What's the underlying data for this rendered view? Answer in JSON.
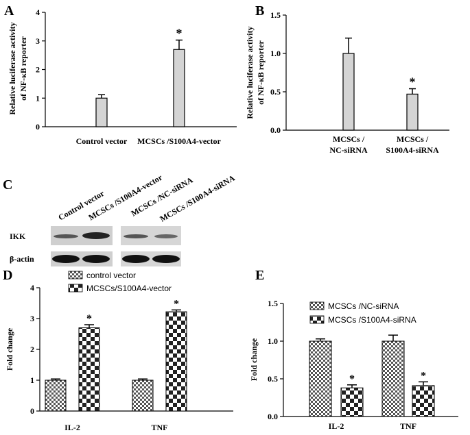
{
  "chart_data": [
    {
      "type": "bar",
      "label": "A",
      "y_label": "Relative luciferase activity\nof NF-κB reporter",
      "categories": [
        "Control vector",
        "MCSCs /S100A4-vector"
      ],
      "values": [
        1.0,
        2.7
      ],
      "errors": [
        0.12,
        0.33
      ],
      "color": "#d4d4d4",
      "ylim": [
        0,
        4
      ],
      "yticks": [
        0,
        1,
        2,
        3,
        4
      ],
      "annotations": [
        {
          "category": "MCSCs /S100A4-vector",
          "text": "*"
        }
      ]
    },
    {
      "type": "bar",
      "label": "B",
      "y_label": "Relative luciferase activity\nof NF-κB reporter",
      "categories": [
        "MCSCs /\nNC-siRNA",
        "MCSCs /\nS100A4-siRNA"
      ],
      "values": [
        1.0,
        0.47
      ],
      "errors": [
        0.2,
        0.07
      ],
      "color": "#d4d4d4",
      "ylim": [
        0,
        1.5
      ],
      "yticks": [
        {
          "value": 0,
          "label": "0.0"
        },
        0.5,
        {
          "value": 1,
          "label": "1.0"
        },
        1.5
      ],
      "annotations": [
        {
          "category": "MCSCs /\nS100A4-siRNA",
          "text": "*"
        }
      ]
    },
    {
      "type": "bar",
      "label": "D",
      "y_label": "Fold change",
      "categories": [
        "IL-2",
        "TNF"
      ],
      "series": [
        {
          "name": "control vector",
          "color": "#555555",
          "values": [
            1.0,
            1.0
          ],
          "errors": [
            0.04,
            0.04
          ]
        },
        {
          "name": "MCSCs/S100A4-vector",
          "color": "#222222",
          "values": [
            2.7,
            3.22
          ],
          "errors": [
            0.1,
            0.06
          ],
          "annotations": [
            "*",
            "*"
          ]
        }
      ],
      "ylim": [
        0,
        4
      ],
      "yticks": [
        0,
        1,
        2,
        3,
        4
      ]
    },
    {
      "type": "bar",
      "label": "E",
      "y_label": "Fold change",
      "categories": [
        "IL-2",
        "TNF"
      ],
      "series": [
        {
          "name": "MCSCs /NC-siRNA",
          "color": "#555555",
          "values": [
            1.0,
            1.0
          ],
          "errors": [
            0.03,
            0.08
          ]
        },
        {
          "name": "MCSCs /S100A4-siRNA",
          "color": "#222222",
          "values": [
            0.38,
            0.41
          ],
          "errors": [
            0.04,
            0.05
          ],
          "annotations": [
            "*",
            "*"
          ]
        }
      ],
      "ylim": [
        0,
        1.5
      ],
      "yticks": [
        {
          "value": 0,
          "label": "0.0"
        },
        0.5,
        {
          "value": 1,
          "label": "1.0"
        },
        1.5
      ]
    }
  ],
  "blot": {
    "label": "C",
    "lanes": [
      "Control vector",
      "MCSCs /S100A4-vector",
      "MCSCs /NC-siRNA",
      "MCSCs /S100A4-siRNA"
    ],
    "rows": [
      "IKK",
      "β-actin"
    ]
  }
}
